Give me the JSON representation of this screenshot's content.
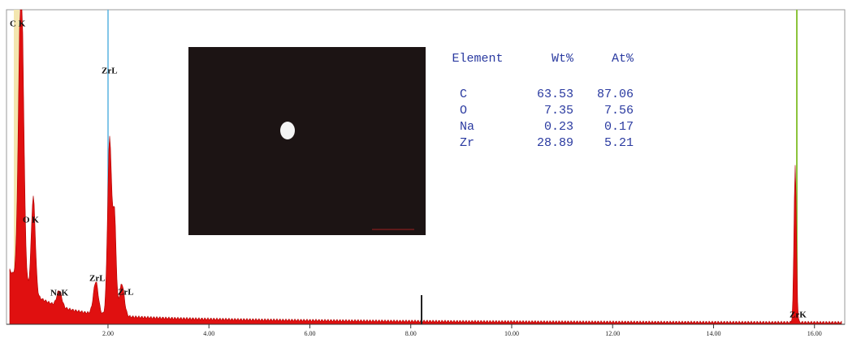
{
  "chart_data": {
    "type": "spectrum",
    "annotations": [
      "C K",
      "ZrL",
      "O K",
      "NaK",
      "ZrL",
      "ZrL",
      "ZrK"
    ],
    "xlim": [
      0,
      16.6
    ],
    "xticks": [
      {
        "value": 2,
        "label": "2.00"
      },
      {
        "value": 4,
        "label": "4.00"
      },
      {
        "value": 6,
        "label": "6.00"
      },
      {
        "value": 8,
        "label": "8.00"
      },
      {
        "value": 10,
        "label": "10.00"
      },
      {
        "value": 12,
        "label": "12.00"
      },
      {
        "value": 14,
        "label": "14.00"
      },
      {
        "value": 16,
        "label": "16.00"
      }
    ],
    "color": "#e01010"
  },
  "table": {
    "header": [
      "Element",
      "Wt%",
      "At%"
    ],
    "rows": [
      [
        "C",
        "63.53",
        "87.06"
      ],
      [
        "O",
        "7.35",
        "7.56"
      ],
      [
        "Na",
        "0.23",
        "0.17"
      ],
      [
        "Zr",
        "28.89",
        "5.21"
      ]
    ]
  }
}
